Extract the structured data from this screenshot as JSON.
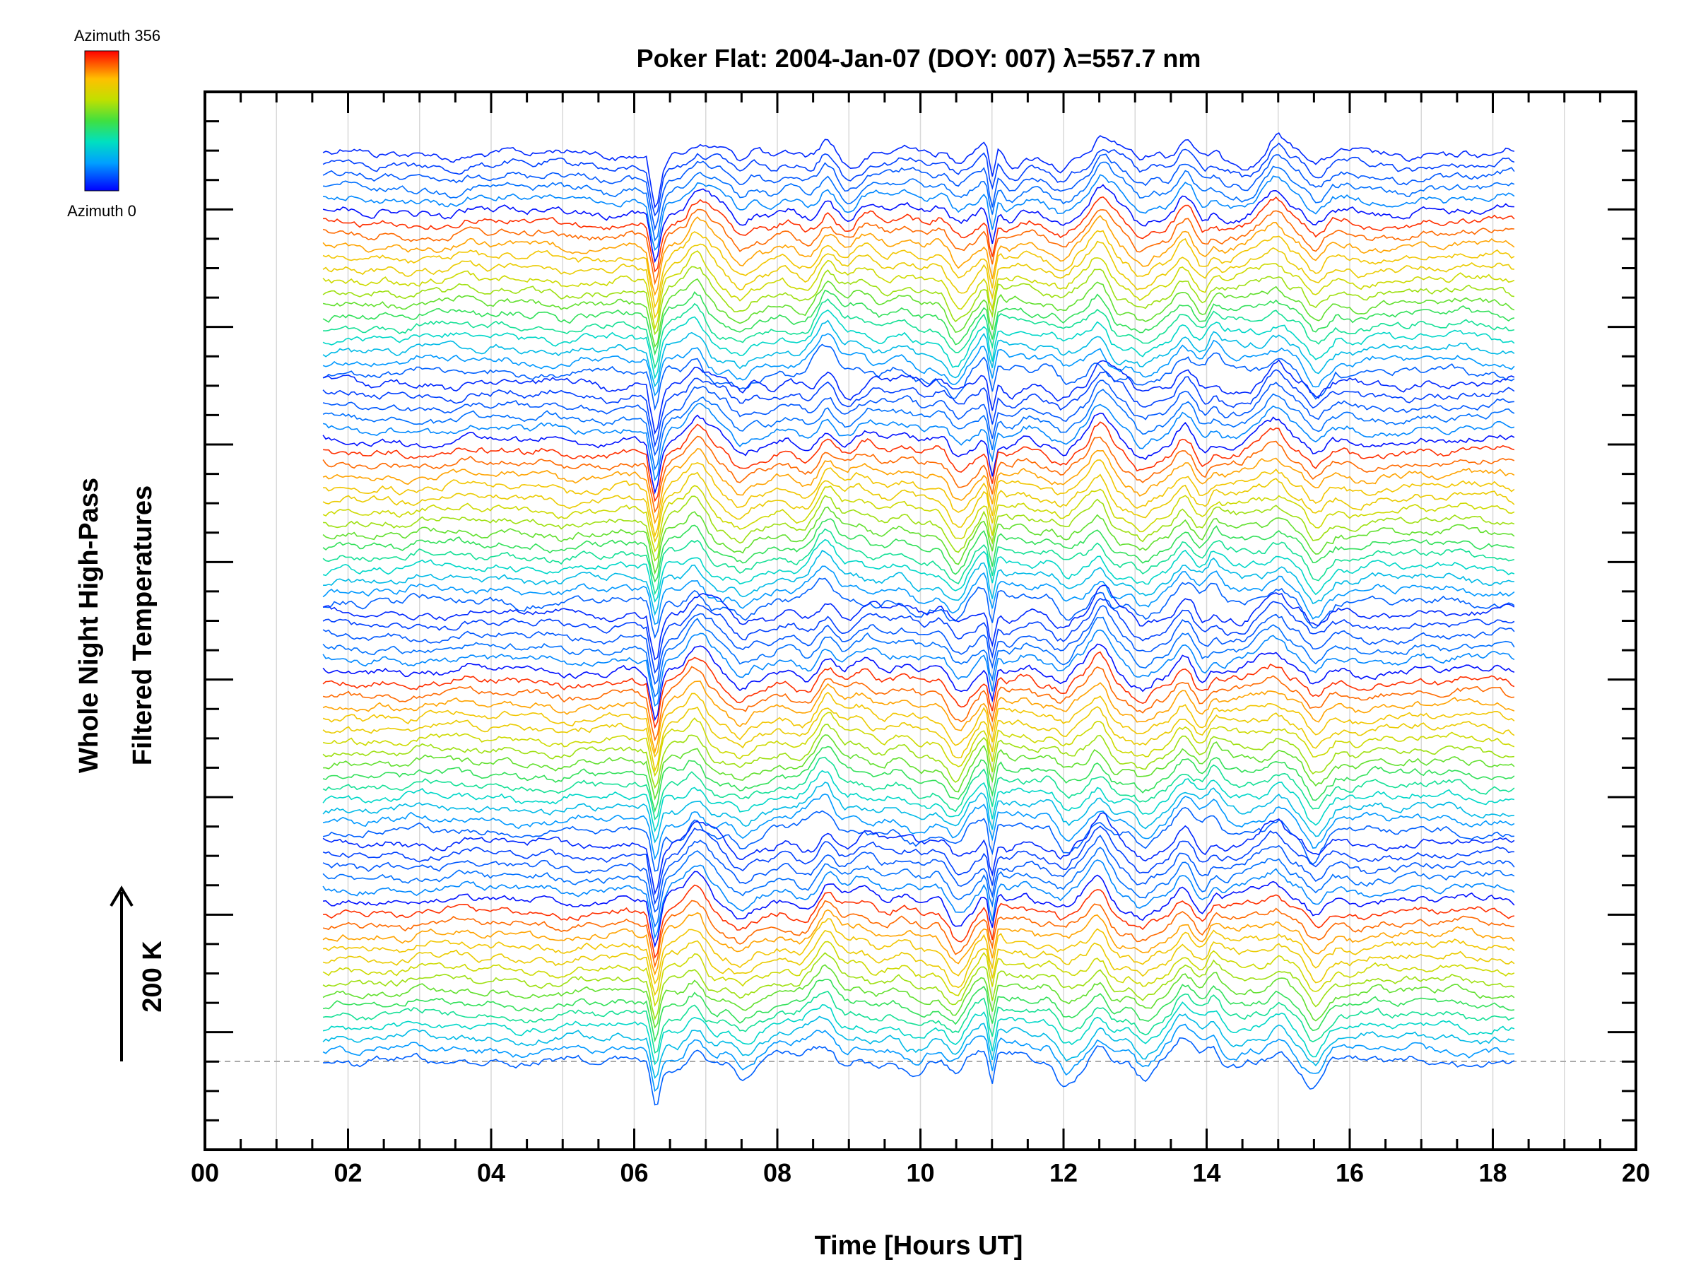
{
  "chart_data": {
    "type": "line",
    "title": "Poker Flat: 2004-Jan-07 (DOY: 007) λ=557.7 nm",
    "xlabel": "Time [Hours UT]",
    "ylabel_line1": "Whole Night High-Pass",
    "ylabel_line2": "Filtered Temperatures",
    "scale_label": "200 K",
    "xlim": [
      0,
      20
    ],
    "x_tick_labels": [
      "00",
      "02",
      "04",
      "06",
      "08",
      "10",
      "12",
      "14",
      "16",
      "18",
      "20"
    ],
    "x_range_data": [
      1.65,
      18.3
    ],
    "colorbar": {
      "top_label": "Azimuth 356",
      "bottom_label": "Azimuth 0",
      "colors": [
        "#0000ff",
        "#00a0ff",
        "#00e0c0",
        "#40e040",
        "#c0e000",
        "#ffc000",
        "#ff6000",
        "#ff0000"
      ]
    },
    "series_groups": 4,
    "series_per_group": 20,
    "event_times_hours": [
      6.3,
      6.85,
      7.5,
      8.7,
      10.5,
      11.0,
      12.0,
      12.5,
      13.1,
      13.7,
      14.1,
      15.0,
      15.5
    ],
    "grid": true,
    "grid_style": "light-gray vertical lines"
  }
}
